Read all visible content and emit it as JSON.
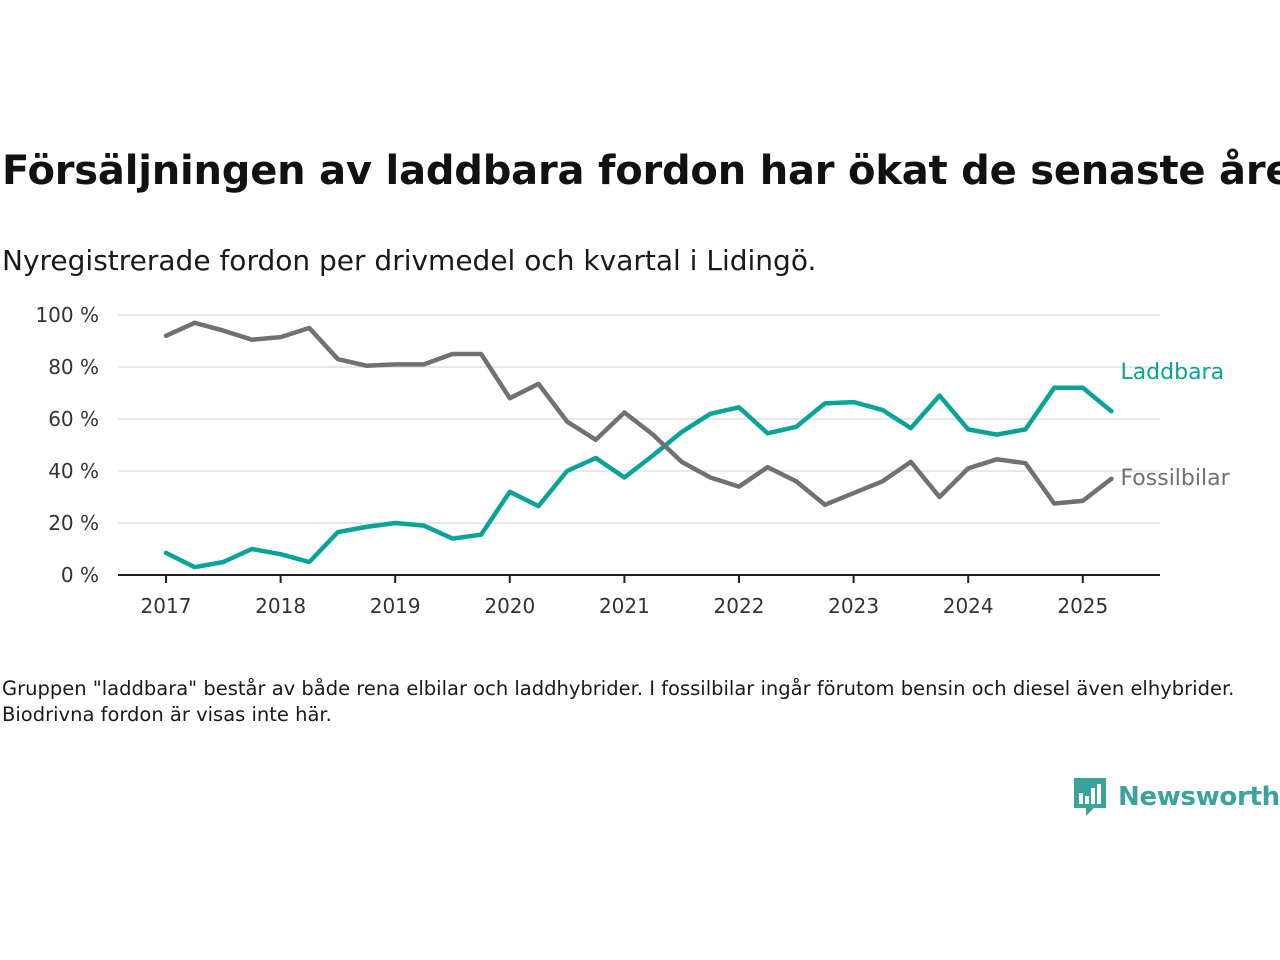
{
  "header": {
    "title": "Försäljningen av laddbara fordon har ökat de senaste åren",
    "subtitle": "Nyregistrerade fordon per drivmedel och kvartal i Lidingö."
  },
  "note": "Gruppen \"laddbara\" består av både rena elbilar och laddhybrider. I fossilbilar ingår förutom bensin och diesel även elhybrider. Biodrivna fordon är visas inte här.",
  "brand": {
    "name": "Newsworthy",
    "color": "#3aa39c"
  },
  "chart_data": {
    "type": "line",
    "title": "Försäljningen av laddbara fordon har ökat de senaste åren",
    "subtitle": "Nyregistrerade fordon per drivmedel och kvartal i Lidingö.",
    "x_unit": "quarter",
    "x": [
      "2017-Q1",
      "2017-Q2",
      "2017-Q3",
      "2017-Q4",
      "2018-Q1",
      "2018-Q2",
      "2018-Q3",
      "2018-Q4",
      "2019-Q1",
      "2019-Q2",
      "2019-Q3",
      "2019-Q4",
      "2020-Q1",
      "2020-Q2",
      "2020-Q3",
      "2020-Q4",
      "2021-Q1",
      "2021-Q2",
      "2021-Q3",
      "2021-Q4",
      "2022-Q1",
      "2022-Q2",
      "2022-Q3",
      "2022-Q4",
      "2023-Q1",
      "2023-Q2",
      "2023-Q3",
      "2023-Q4",
      "2024-Q1",
      "2024-Q2",
      "2024-Q3",
      "2024-Q4",
      "2025-Q1",
      "2025-Q2"
    ],
    "x_tick_labels": [
      "2017",
      "2018",
      "2019",
      "2020",
      "2021",
      "2022",
      "2023",
      "2024",
      "2025"
    ],
    "y_tick_labels": [
      "0 %",
      "20 %",
      "40 %",
      "60 %",
      "80 %",
      "100 %"
    ],
    "ylim": [
      0,
      100
    ],
    "grid": true,
    "legend": "direct labels at line ends (right)",
    "series": [
      {
        "name": "Laddbara",
        "color": "#0aa397",
        "values": [
          8.5,
          3,
          5,
          10,
          8,
          5,
          16.5,
          18.5,
          20,
          19,
          14,
          15.5,
          32,
          26.5,
          40,
          45,
          37.5,
          46,
          55,
          62,
          64.5,
          54.5,
          57,
          66,
          66.5,
          63.5,
          56.5,
          69,
          56,
          54,
          56,
          72,
          72,
          63
        ]
      },
      {
        "name": "Fossilbilar",
        "color": "#707075",
        "values": [
          92,
          97,
          94,
          90.5,
          91.5,
          95,
          83,
          80.5,
          81,
          81,
          85,
          85,
          68,
          73.5,
          59,
          52,
          62.5,
          54,
          43.5,
          37.5,
          34,
          41.5,
          36,
          27,
          31.5,
          36,
          43.5,
          30,
          41,
          44.5,
          43,
          27.5,
          28.5,
          37
        ]
      }
    ]
  }
}
